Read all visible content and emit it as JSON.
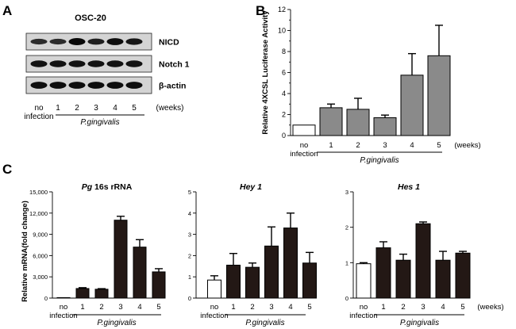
{
  "panels": {
    "a": {
      "letter": "A",
      "cell_line": "OSC-20",
      "bands": [
        {
          "label": "NICD",
          "intensity": [
            0.55,
            0.55,
            0.95,
            0.7,
            0.9,
            0.8
          ]
        },
        {
          "label": "Notch 1",
          "intensity": [
            0.85,
            0.85,
            0.85,
            0.85,
            0.85,
            0.85
          ]
        },
        {
          "label": "β-actin",
          "intensity": [
            0.9,
            0.9,
            0.9,
            0.9,
            0.9,
            0.9
          ]
        }
      ],
      "lanes": [
        "1",
        "2",
        "3",
        "4",
        "5"
      ],
      "control_line1": "no",
      "control_line2": "infection",
      "unit": "(weeks)",
      "group": "P.gingivalis"
    },
    "b": {
      "letter": "B"
    },
    "c": {
      "letter": "C"
    }
  },
  "chart_data": [
    {
      "id": "b",
      "type": "bar",
      "ylabel": "Relative 4XCSL Luciferase Activity",
      "ylim": [
        0,
        12
      ],
      "yticks": [
        0,
        2,
        4,
        6,
        8,
        10,
        12
      ],
      "categories": [
        "no infection",
        "1",
        "2",
        "3",
        "4",
        "5"
      ],
      "values": [
        1.0,
        2.65,
        2.5,
        1.7,
        5.75,
        7.6
      ],
      "errors": [
        0.0,
        0.35,
        1.05,
        0.25,
        2.05,
        2.9
      ],
      "fill": [
        "#ffffff",
        "#8a8a8a",
        "#8a8a8a",
        "#8a8a8a",
        "#8a8a8a",
        "#8a8a8a"
      ],
      "xlabel": "(weeks)",
      "group": "P.gingivalis"
    },
    {
      "id": "c1",
      "type": "bar",
      "title_italic": "Pg",
      "title_rest": " 16s rRNA",
      "ylabel": "Relative mRNA(fold change)",
      "ylim": [
        0,
        15000
      ],
      "yticks": [
        0,
        3000,
        6000,
        9000,
        12000,
        15000
      ],
      "ytick_labels": [
        "0",
        "3,000",
        "6,000",
        "9,000",
        "12,000",
        "15,000"
      ],
      "categories": [
        "no infection",
        "1",
        "2",
        "3",
        "4",
        "5"
      ],
      "values": [
        0,
        1350,
        1250,
        11000,
        7200,
        3700
      ],
      "errors": [
        0,
        120,
        80,
        550,
        1050,
        450
      ],
      "fill": [
        "#ffffff",
        "#231815",
        "#231815",
        "#231815",
        "#231815",
        "#231815"
      ],
      "group": "P.gingivalis"
    },
    {
      "id": "c2",
      "type": "bar",
      "title": "Hey 1",
      "ylim": [
        0,
        5
      ],
      "yticks": [
        0,
        1,
        2,
        3,
        4,
        5
      ],
      "ytick_labels": [
        "0",
        "1",
        "2",
        "3",
        "4",
        "5"
      ],
      "categories": [
        "no infection",
        "1",
        "2",
        "3",
        "4",
        "5"
      ],
      "values": [
        0.85,
        1.55,
        1.45,
        2.45,
        3.3,
        1.65
      ],
      "errors": [
        0.2,
        0.55,
        0.2,
        0.9,
        0.7,
        0.5
      ],
      "fill": [
        "#ffffff",
        "#231815",
        "#231815",
        "#231815",
        "#231815",
        "#231815"
      ],
      "group": "P.gingivalis"
    },
    {
      "id": "c3",
      "type": "bar",
      "title": "Hes 1",
      "ylim": [
        0,
        3
      ],
      "yticks": [
        0,
        1,
        2,
        3
      ],
      "ytick_labels": [
        "0",
        "1",
        "2",
        "3"
      ],
      "categories": [
        "no infection",
        "1",
        "2",
        "3",
        "4",
        "5"
      ],
      "values": [
        0.97,
        1.42,
        1.07,
        2.1,
        1.07,
        1.27
      ],
      "errors": [
        0.03,
        0.17,
        0.17,
        0.05,
        0.25,
        0.05
      ],
      "fill": [
        "#ffffff",
        "#231815",
        "#231815",
        "#231815",
        "#231815",
        "#231815"
      ],
      "xlabel": "(weeks)",
      "group": "P.gingivalis"
    }
  ]
}
